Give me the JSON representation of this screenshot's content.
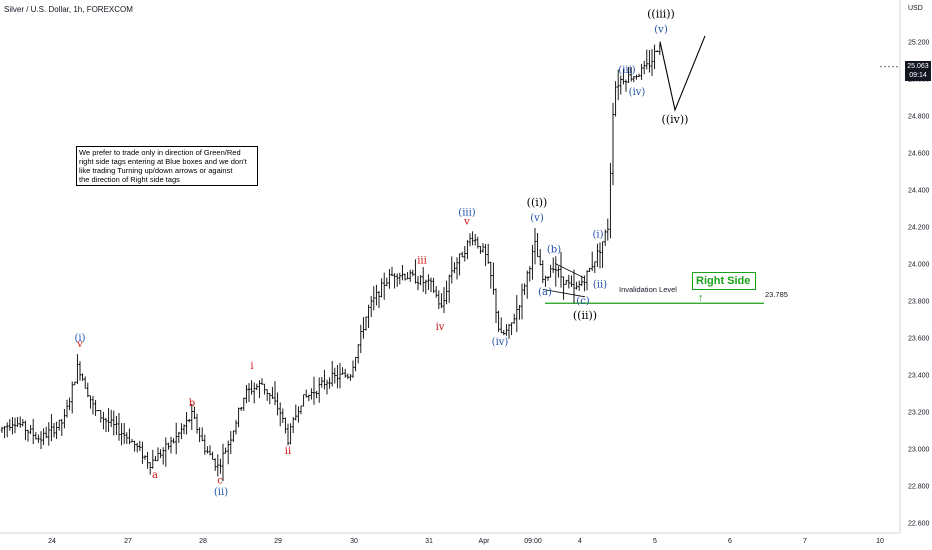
{
  "header": {
    "title": "Silver / U.S. Dollar, 1h, FOREXCOM"
  },
  "note": {
    "lines": [
      "We prefer to trade only in direction of Green/Red",
      "right side tags entering at Blue boxes and we don't",
      "like trading Turning up/down arrows or against",
      "the direction of Right side tags"
    ]
  },
  "right_side": {
    "label": "Right Side",
    "arrow": "↑",
    "color": "#1aa11a"
  },
  "invalidation": {
    "label": "Invalidation Level",
    "value_text": "23.785",
    "value": 23.785
  },
  "axis": {
    "currency": "USD"
  },
  "price_badge": {
    "price": "25.063",
    "time": "09:14"
  },
  "colors": {
    "bars": "#000000",
    "red_labels": "#cc1111",
    "blue_labels": "#1f4fa8",
    "black_labels": "#000000",
    "invalidation_line": "#1aa11a"
  },
  "chart_data": {
    "type": "ohlc",
    "title": "Silver / U.S. Dollar, 1h, FOREXCOM",
    "y_ticks": [
      "25.200",
      "25.000",
      "24.800",
      "24.600",
      "24.400",
      "24.200",
      "24.000",
      "23.800",
      "23.600",
      "23.400",
      "23.200",
      "23.000",
      "22.800",
      "22.600"
    ],
    "x_ticks": [
      "24",
      "27",
      "28",
      "29",
      "30",
      "31",
      "Apr",
      "09:00",
      "4",
      "5",
      "6",
      "7",
      "10"
    ],
    "ylim": [
      22.55,
      25.4
    ],
    "price_path": [
      [
        0,
        23.1
      ],
      [
        14,
        23.15
      ],
      [
        40,
        23.05
      ],
      [
        64,
        23.15
      ],
      [
        78,
        23.45
      ],
      [
        95,
        23.2
      ],
      [
        130,
        23.05
      ],
      [
        150,
        22.92
      ],
      [
        175,
        23.05
      ],
      [
        192,
        23.18
      ],
      [
        205,
        23.0
      ],
      [
        218,
        22.9
      ],
      [
        230,
        23.05
      ],
      [
        245,
        23.3
      ],
      [
        262,
        23.35
      ],
      [
        280,
        23.2
      ],
      [
        288,
        23.05
      ],
      [
        300,
        23.25
      ],
      [
        330,
        23.38
      ],
      [
        350,
        23.4
      ],
      [
        368,
        23.75
      ],
      [
        385,
        23.9
      ],
      [
        395,
        23.95
      ],
      [
        415,
        23.92
      ],
      [
        432,
        23.88
      ],
      [
        442,
        23.75
      ],
      [
        450,
        23.95
      ],
      [
        462,
        24.05
      ],
      [
        472,
        24.15
      ],
      [
        485,
        24.05
      ],
      [
        492,
        23.9
      ],
      [
        500,
        23.6
      ],
      [
        510,
        23.65
      ],
      [
        520,
        23.8
      ],
      [
        535,
        24.1
      ],
      [
        544,
        23.88
      ],
      [
        552,
        24.0
      ],
      [
        565,
        23.9
      ],
      [
        575,
        23.85
      ],
      [
        588,
        23.95
      ],
      [
        600,
        24.08
      ],
      [
        608,
        24.2
      ],
      [
        614,
        24.95
      ],
      [
        622,
        25.0
      ],
      [
        636,
        25.02
      ],
      [
        645,
        25.05
      ],
      [
        652,
        25.1
      ],
      [
        660,
        25.2
      ]
    ],
    "projection": {
      "points": [
        [
          660,
          25.2
        ],
        [
          675,
          24.83
        ],
        [
          705,
          25.23
        ]
      ]
    },
    "annotations": [
      {
        "text": "(i)",
        "x": 80,
        "y": 23.58,
        "color": "blue"
      },
      {
        "text": "v",
        "x": 80,
        "y": 23.55,
        "color": "red"
      },
      {
        "text": "a",
        "x": 155,
        "y": 22.84,
        "color": "red"
      },
      {
        "text": "b",
        "x": 192,
        "y": 23.23,
        "color": "red"
      },
      {
        "text": "c",
        "x": 220,
        "y": 22.81,
        "color": "red"
      },
      {
        "text": "(ii)",
        "x": 221,
        "y": 22.75,
        "color": "blue"
      },
      {
        "text": "i",
        "x": 252,
        "y": 23.43,
        "color": "red"
      },
      {
        "text": "ii",
        "x": 288,
        "y": 22.97,
        "color": "red"
      },
      {
        "text": "iii",
        "x": 422,
        "y": 24.0,
        "color": "red"
      },
      {
        "text": "iv",
        "x": 440,
        "y": 23.64,
        "color": "red"
      },
      {
        "text": "(iii)",
        "x": 467,
        "y": 24.26,
        "color": "blue"
      },
      {
        "text": "v",
        "x": 467,
        "y": 24.21,
        "color": "red"
      },
      {
        "text": "(iv)",
        "x": 500,
        "y": 23.56,
        "color": "blue"
      },
      {
        "text": "((i))",
        "x": 537,
        "y": 24.31,
        "color": "black"
      },
      {
        "text": "(v)",
        "x": 537,
        "y": 24.23,
        "color": "blue"
      },
      {
        "text": "(a)",
        "x": 545,
        "y": 23.83,
        "color": "blue"
      },
      {
        "text": "(b)",
        "x": 554,
        "y": 24.06,
        "color": "blue"
      },
      {
        "text": "(c)",
        "x": 583,
        "y": 23.78,
        "color": "blue"
      },
      {
        "text": "((ii))",
        "x": 585,
        "y": 23.7,
        "color": "black"
      },
      {
        "text": "(i)",
        "x": 598,
        "y": 24.14,
        "color": "blue"
      },
      {
        "text": "(ii)",
        "x": 600,
        "y": 23.87,
        "color": "blue"
      },
      {
        "text": "(iii)",
        "x": 627,
        "y": 25.03,
        "color": "blue"
      },
      {
        "text": "(iv)",
        "x": 637,
        "y": 24.91,
        "color": "blue"
      },
      {
        "text": "((iii))",
        "x": 661,
        "y": 25.33,
        "color": "black"
      },
      {
        "text": "(v)",
        "x": 661,
        "y": 25.25,
        "color": "blue"
      },
      {
        "text": "((iv))",
        "x": 675,
        "y": 24.76,
        "color": "black"
      }
    ]
  }
}
